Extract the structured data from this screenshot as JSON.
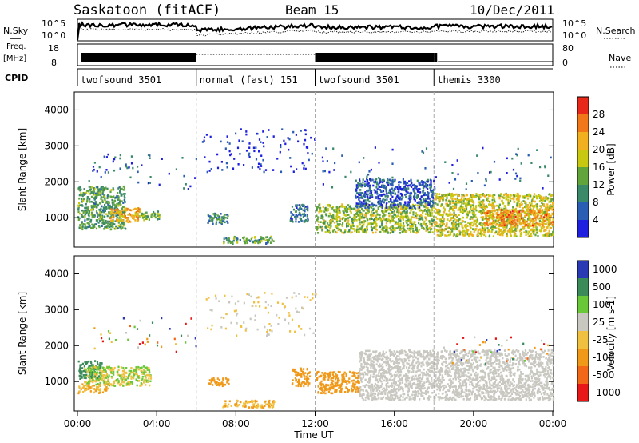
{
  "header": {
    "station": "Saskatoon (fitACF)",
    "beam": "Beam 15",
    "date": "10/Dec/2011"
  },
  "top_panels": {
    "nsky_label": "N.Sky",
    "nsky_ticks": [
      "10^5",
      "10^0"
    ],
    "nsearch_label": "N.Search",
    "freq_label": "Freq.",
    "freq_unit": "[MHz]",
    "freq_ticks": [
      "18",
      "8"
    ],
    "nave_label": "Nave",
    "nave_ticks": [
      "80",
      "0"
    ],
    "cpid_label": "CPID"
  },
  "cpid_segments": [
    {
      "label": "twofsound 3501",
      "start": 0,
      "end": 6
    },
    {
      "label": "normal (fast) 151",
      "start": 6,
      "end": 12
    },
    {
      "label": "twofsound 3501",
      "start": 12,
      "end": 18
    },
    {
      "label": "themis 3300",
      "start": 18,
      "end": 24
    }
  ],
  "x_axis": {
    "label": "Time UT",
    "ticks": [
      "00:00",
      "04:00",
      "08:00",
      "12:00",
      "16:00",
      "20:00",
      "00:00"
    ],
    "range_hours": [
      0,
      24
    ]
  },
  "panels": {
    "power": {
      "ylabel": "Slant Range [km]",
      "yticks": [
        "4000",
        "3000",
        "2000",
        "1000"
      ],
      "cbar_title": "Power [dB]",
      "cbar_ticks": [
        "28",
        "24",
        "20",
        "16",
        "12",
        "8",
        "4"
      ],
      "colors": [
        "#1f1fe0",
        "#2a5db4",
        "#3a8a6a",
        "#62a43c",
        "#c8c810",
        "#f0b020",
        "#f07818",
        "#e82818"
      ]
    },
    "velocity": {
      "ylabel": "Slant Range [km]",
      "yticks": [
        "4000",
        "3000",
        "2000",
        "1000"
      ],
      "cbar_title": "Velocity [m s-1]",
      "cbar_ticks": [
        "1000",
        "500",
        "100",
        "25",
        "-25",
        "-100",
        "-500",
        "-1000"
      ],
      "colors": [
        "#e81818",
        "#f06818",
        "#f09818",
        "#f0c040",
        "#c8c8c0",
        "#68c838",
        "#3a8a5a",
        "#2a3ab4"
      ]
    }
  },
  "chart_data": [
    {
      "type": "heatmap",
      "title": "Power",
      "ylabel": "Slant Range [km]",
      "xlabel": "Time UT",
      "xlim_hours": [
        0,
        24
      ],
      "ylim_km": [
        180,
        4500
      ],
      "colorbar": {
        "label": "Power [dB]",
        "range": [
          0,
          30
        ],
        "ticks": [
          4,
          8,
          12,
          16,
          20,
          24,
          28
        ]
      },
      "regions": [
        {
          "t0": 0.0,
          "t1": 2.4,
          "r0": 700,
          "r1": 1900,
          "value": 14
        },
        {
          "t0": 1.6,
          "t1": 3.1,
          "r0": 900,
          "r1": 1300,
          "value": 24
        },
        {
          "t0": 3.0,
          "t1": 4.1,
          "r0": 950,
          "r1": 1200,
          "value": 16
        },
        {
          "t0": 6.5,
          "t1": 7.6,
          "r0": 850,
          "r1": 1150,
          "value": 12
        },
        {
          "t0": 7.3,
          "t1": 9.9,
          "r0": 300,
          "r1": 500,
          "value": 14
        },
        {
          "t0": 10.7,
          "t1": 11.6,
          "r0": 900,
          "r1": 1400,
          "value": 10
        },
        {
          "t0": 12.0,
          "t1": 18.0,
          "r0": 600,
          "r1": 1400,
          "value": 18
        },
        {
          "t0": 14.0,
          "t1": 18.0,
          "r0": 1300,
          "r1": 2100,
          "value": 8
        },
        {
          "t0": 18.0,
          "t1": 24.0,
          "r0": 500,
          "r1": 1700,
          "value": 20
        },
        {
          "t0": 20.5,
          "t1": 24.0,
          "r0": 800,
          "r1": 1250,
          "value": 26
        }
      ]
    },
    {
      "type": "heatmap",
      "title": "Velocity",
      "ylabel": "Slant Range [km]",
      "xlabel": "Time UT",
      "xlim_hours": [
        0,
        24
      ],
      "ylim_km": [
        180,
        4500
      ],
      "colorbar": {
        "label": "Velocity [m s-1]",
        "ticks": [
          1000,
          500,
          100,
          25,
          -25,
          -100,
          -500,
          -1000
        ]
      },
      "regions": [
        {
          "t0": 0.0,
          "t1": 1.2,
          "r0": 1100,
          "r1": 1600,
          "value": 600
        },
        {
          "t0": 0.3,
          "t1": 3.7,
          "r0": 900,
          "r1": 1450,
          "value": 60
        },
        {
          "t0": 0.0,
          "t1": 1.5,
          "r0": 700,
          "r1": 950,
          "value": -60
        },
        {
          "t0": 6.6,
          "t1": 7.6,
          "r0": 900,
          "r1": 1150,
          "value": -200
        },
        {
          "t0": 7.3,
          "t1": 9.9,
          "r0": 300,
          "r1": 500,
          "value": -60
        },
        {
          "t0": 10.8,
          "t1": 11.7,
          "r0": 900,
          "r1": 1400,
          "value": -200
        },
        {
          "t0": 12.0,
          "t1": 14.2,
          "r0": 700,
          "r1": 1300,
          "value": -150
        },
        {
          "t0": 14.2,
          "t1": 24.0,
          "r0": 500,
          "r1": 1900,
          "value": 0
        }
      ]
    }
  ]
}
